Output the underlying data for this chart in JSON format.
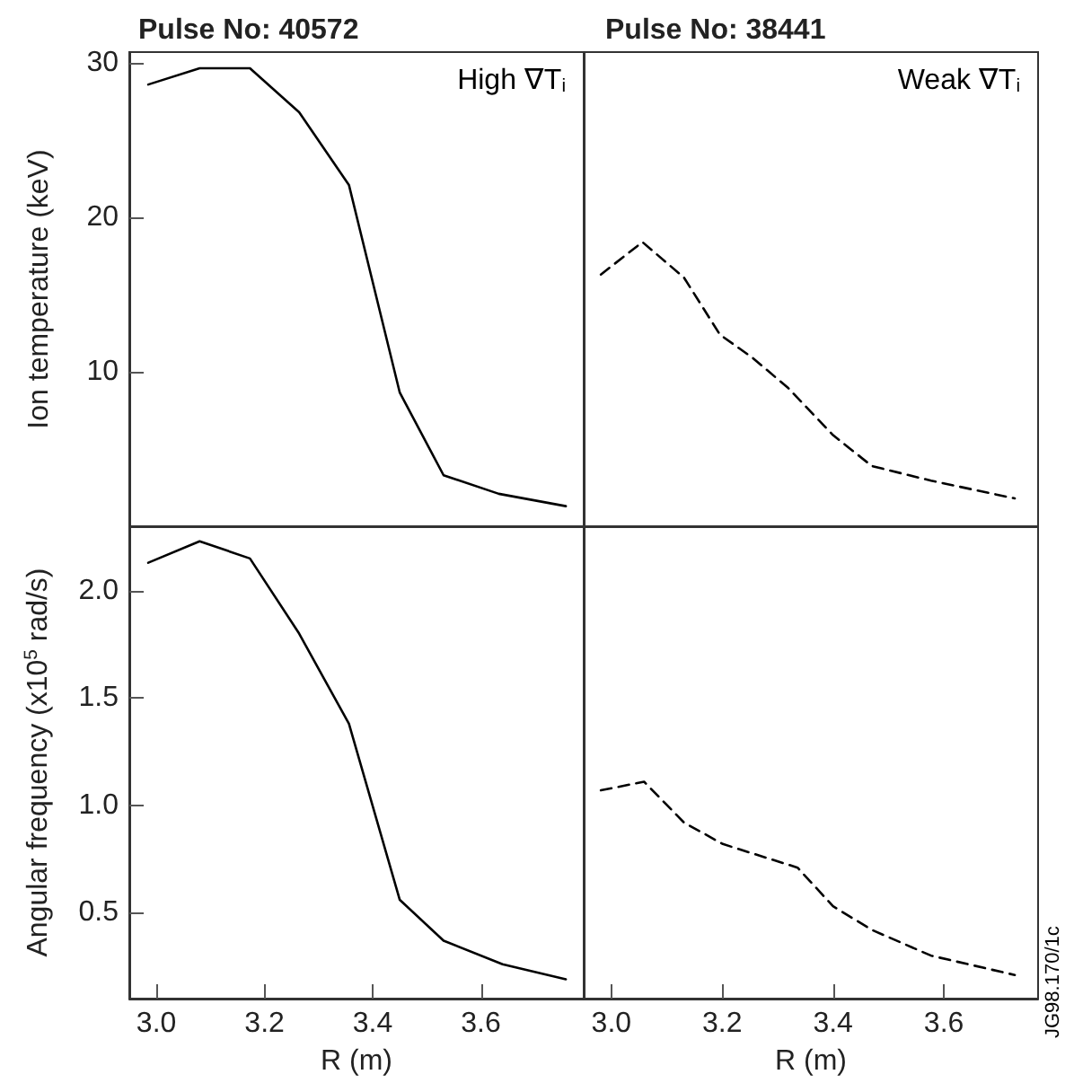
{
  "chart_data": [
    {
      "type": "line",
      "title": "Pulse No: 40572",
      "ylabel": "Ion temperature (keV)",
      "annotations": [
        "High ∇T$_{i}$"
      ],
      "xlim": [
        2.95,
        3.79
      ],
      "ylim": [
        0,
        30.7
      ],
      "yticks": [
        10,
        20,
        30
      ],
      "tick_labels": "y",
      "line_style": "solid",
      "series": [
        {
          "color": "#000000",
          "x": [
            2.985,
            3.08,
            3.173,
            3.264,
            3.356,
            3.45,
            3.531,
            3.633,
            3.757
          ],
          "values": [
            28.6,
            29.65,
            29.65,
            26.8,
            22.1,
            8.65,
            3.3,
            2.1,
            1.3
          ]
        }
      ]
    },
    {
      "type": "line",
      "title": "Pulse No: 38441",
      "annotations": [
        "Weak ∇T$_{i}$"
      ],
      "xlim": [
        2.95,
        3.77
      ],
      "ylim": [
        0,
        30.7
      ],
      "tick_labels": false,
      "line_style": "dashed",
      "series": [
        {
          "color": "#000000",
          "x": [
            2.981,
            3.056,
            3.131,
            3.196,
            3.255,
            3.319,
            3.4,
            3.47,
            3.577,
            3.728
          ],
          "values": [
            16.3,
            18.4,
            16.1,
            12.4,
            10.9,
            8.95,
            5.9,
            3.9,
            2.95,
            1.8
          ]
        }
      ]
    },
    {
      "type": "line",
      "xlabel": "R (m)",
      "ylabel": "Angular frequency (x10$^{5}$ rad/s)",
      "xlim": [
        2.95,
        3.79
      ],
      "ylim": [
        0.1,
        2.3
      ],
      "xticks": [
        {
          "value": 3,
          "label": "3.0"
        },
        3.2,
        3.4,
        3.6
      ],
      "yticks": [
        0.5,
        {
          "value": 1,
          "label": "1.0"
        },
        1.5,
        {
          "value": 2,
          "label": "2.0"
        }
      ],
      "line_style": "solid",
      "series": [
        {
          "color": "#000000",
          "x": [
            2.985,
            3.08,
            3.173,
            3.264,
            3.356,
            3.45,
            3.531,
            3.64,
            3.757
          ],
          "values": [
            2.13,
            2.23,
            2.15,
            1.8,
            1.38,
            0.56,
            0.37,
            0.26,
            0.19
          ]
        }
      ]
    },
    {
      "type": "line",
      "xlabel": "R (m)",
      "annotations": [
        "JG98.170/1c"
      ],
      "xlim": [
        2.95,
        3.77
      ],
      "ylim": [
        0.1,
        2.3
      ],
      "xticks": [
        {
          "value": 3,
          "label": "3.0"
        },
        3.2,
        3.4,
        3.6
      ],
      "tick_labels": "x",
      "line_style": "dashed",
      "series": [
        {
          "color": "#000000",
          "x": [
            2.981,
            3.059,
            3.131,
            3.201,
            3.336,
            3.4,
            3.47,
            3.577,
            3.728
          ],
          "values": [
            1.07,
            1.11,
            0.92,
            0.82,
            0.71,
            0.53,
            0.42,
            0.3,
            0.21
          ]
        }
      ]
    }
  ]
}
